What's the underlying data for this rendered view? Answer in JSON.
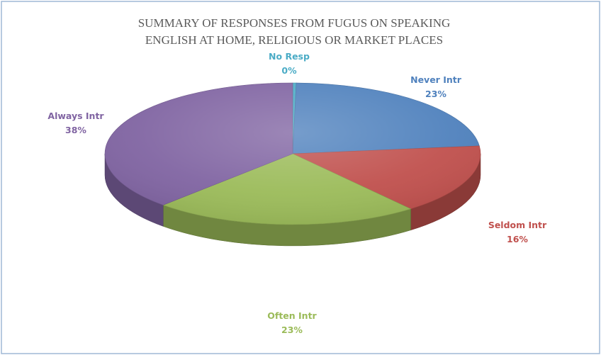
{
  "chart_data": {
    "type": "pie",
    "title_lines": [
      "SUMMARY OF RESPONSES FROM FUGUS ON SPEAKING",
      "ENGLISH AT HOME, RELIGIOUS  OR MARKET PLACES"
    ],
    "slices": [
      {
        "label": "No Resp",
        "percent_label": "0%",
        "value": 0.3,
        "color": "#4bacc6"
      },
      {
        "label": "Never Intr",
        "percent_label": "23%",
        "value": 23,
        "color": "#4f81bd"
      },
      {
        "label": "Seldom Intr",
        "percent_label": "16%",
        "value": 16,
        "color": "#c0504d"
      },
      {
        "label": "Often Intr",
        "percent_label": "23%",
        "value": 23,
        "color": "#9bbb59"
      },
      {
        "label": "Always Intr",
        "percent_label": "38%",
        "value": 38,
        "color": "#8064a2"
      }
    ],
    "style": "3d",
    "legend": "none"
  }
}
